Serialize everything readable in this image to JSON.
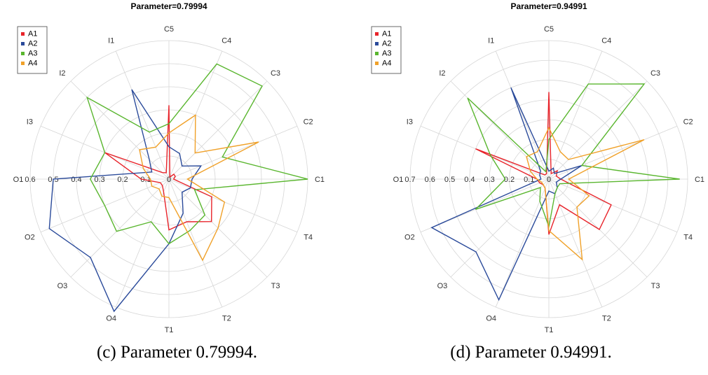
{
  "figure": {
    "captions": [
      "(c) Parameter 0.79994.",
      "(d) Parameter 0.94991."
    ]
  },
  "chart_data": [
    {
      "type": "radar",
      "title": "Parameter=0.79994",
      "axes": [
        "C1",
        "C2",
        "C3",
        "C4",
        "C5",
        "I1",
        "I2",
        "I3",
        "O1",
        "O2",
        "O3",
        "O4",
        "T1",
        "T2",
        "T3",
        "T4"
      ],
      "rlim": [
        0,
        0.6
      ],
      "r_ticks": [
        0,
        0.1,
        0.2,
        0.3,
        0.4,
        0.5,
        0.6
      ],
      "grid": true,
      "legend": "top-left",
      "series": [
        {
          "name": "A1",
          "color": "#e8232a",
          "values": [
            0.02,
            0.03,
            0.03,
            0.01,
            0.32,
            0.03,
            0.04,
            0.3,
            0.12,
            0.04,
            0.04,
            0.06,
            0.22,
            0.2,
            0.26,
            0.2
          ]
        },
        {
          "name": "A2",
          "color": "#2a4a9a",
          "values": [
            0.1,
            0.15,
            0.08,
            0.12,
            0.14,
            0.42,
            0.12,
            0.08,
            0.5,
            0.56,
            0.48,
            0.62,
            0.28,
            0.16,
            0.08,
            0.1
          ]
        },
        {
          "name": "A3",
          "color": "#5ab62f",
          "values": [
            0.6,
            0.25,
            0.57,
            0.54,
            0.24,
            0.22,
            0.5,
            0.3,
            0.34,
            0.3,
            0.32,
            0.2,
            0.28,
            0.24,
            0.22,
            0.12
          ]
        },
        {
          "name": "A4",
          "color": "#f0a129",
          "values": [
            0.08,
            0.42,
            0.16,
            0.3,
            0.2,
            0.15,
            0.18,
            0.12,
            0.08,
            0.08,
            0.06,
            0.08,
            0.08,
            0.38,
            0.3,
            0.26
          ]
        }
      ]
    },
    {
      "type": "radar",
      "title": "Parameter=0.94991",
      "axes": [
        "C1",
        "C2",
        "C3",
        "C4",
        "C5",
        "I1",
        "I2",
        "I3",
        "O1",
        "O2",
        "O3",
        "O4",
        "T1",
        "T2",
        "T3",
        "T4"
      ],
      "rlim": [
        0,
        0.7
      ],
      "r_ticks": [
        0,
        0.1,
        0.2,
        0.3,
        0.4,
        0.5,
        0.6,
        0.7
      ],
      "grid": true,
      "legend": "top-left",
      "series": [
        {
          "name": "A1",
          "color": "#e8232a",
          "values": [
            0.06,
            0.04,
            0.06,
            0.03,
            0.44,
            0.03,
            0.03,
            0.4,
            0.06,
            0.05,
            0.04,
            0.05,
            0.28,
            0.14,
            0.36,
            0.34
          ]
        },
        {
          "name": "A2",
          "color": "#2a4a9a",
          "values": [
            0.06,
            0.18,
            0.04,
            0.06,
            0.04,
            0.5,
            0.06,
            0.05,
            0.04,
            0.64,
            0.52,
            0.66,
            0.06,
            0.08,
            0.06,
            0.04
          ]
        },
        {
          "name": "A3",
          "color": "#5ab62f",
          "values": [
            0.66,
            0.18,
            0.68,
            0.52,
            0.2,
            0.04,
            0.58,
            0.32,
            0.22,
            0.4,
            0.06,
            0.12,
            0.24,
            0.08,
            0.06,
            0.06
          ]
        },
        {
          "name": "A4",
          "color": "#f0a129",
          "values": [
            0.1,
            0.52,
            0.14,
            0.15,
            0.26,
            0.15,
            0.16,
            0.1,
            0.06,
            0.04,
            0.04,
            0.05,
            0.26,
            0.44,
            0.2,
            0.22
          ]
        }
      ]
    }
  ]
}
